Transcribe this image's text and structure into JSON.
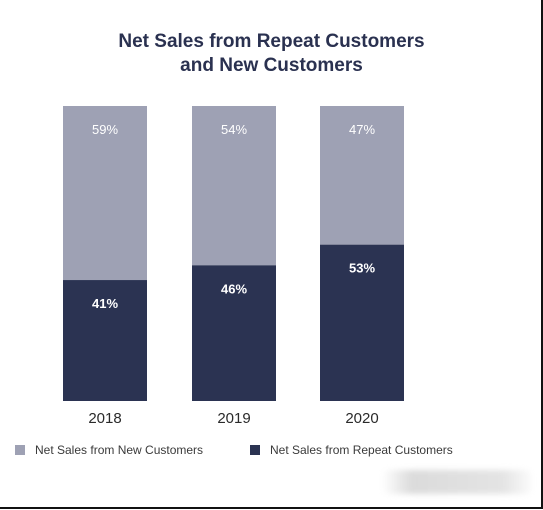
{
  "chart_data": {
    "type": "bar",
    "stacked": true,
    "title_lines": [
      "Net Sales from Repeat Customers",
      "and New Customers"
    ],
    "categories": [
      "2018",
      "2019",
      "2020"
    ],
    "series": [
      {
        "name": "Net Sales from Repeat Customers",
        "values": [
          41,
          46,
          53
        ],
        "labels": [
          "41%",
          "46%",
          "53%"
        ],
        "color": "#2b3352",
        "label_color": "#ffffff"
      },
      {
        "name": "Net Sales from New Customers",
        "values": [
          59,
          54,
          47
        ],
        "labels": [
          "59%",
          "54%",
          "47%"
        ],
        "color": "#9ea1b4",
        "label_color": "#ffffff"
      }
    ],
    "ylim": [
      0,
      100
    ],
    "grid": false,
    "legend_position": "bottom"
  },
  "legend": [
    {
      "label": "Net Sales from New Customers",
      "color": "#9ea1b4"
    },
    {
      "label": "Net Sales from Repeat Customers",
      "color": "#2b3352"
    }
  ]
}
